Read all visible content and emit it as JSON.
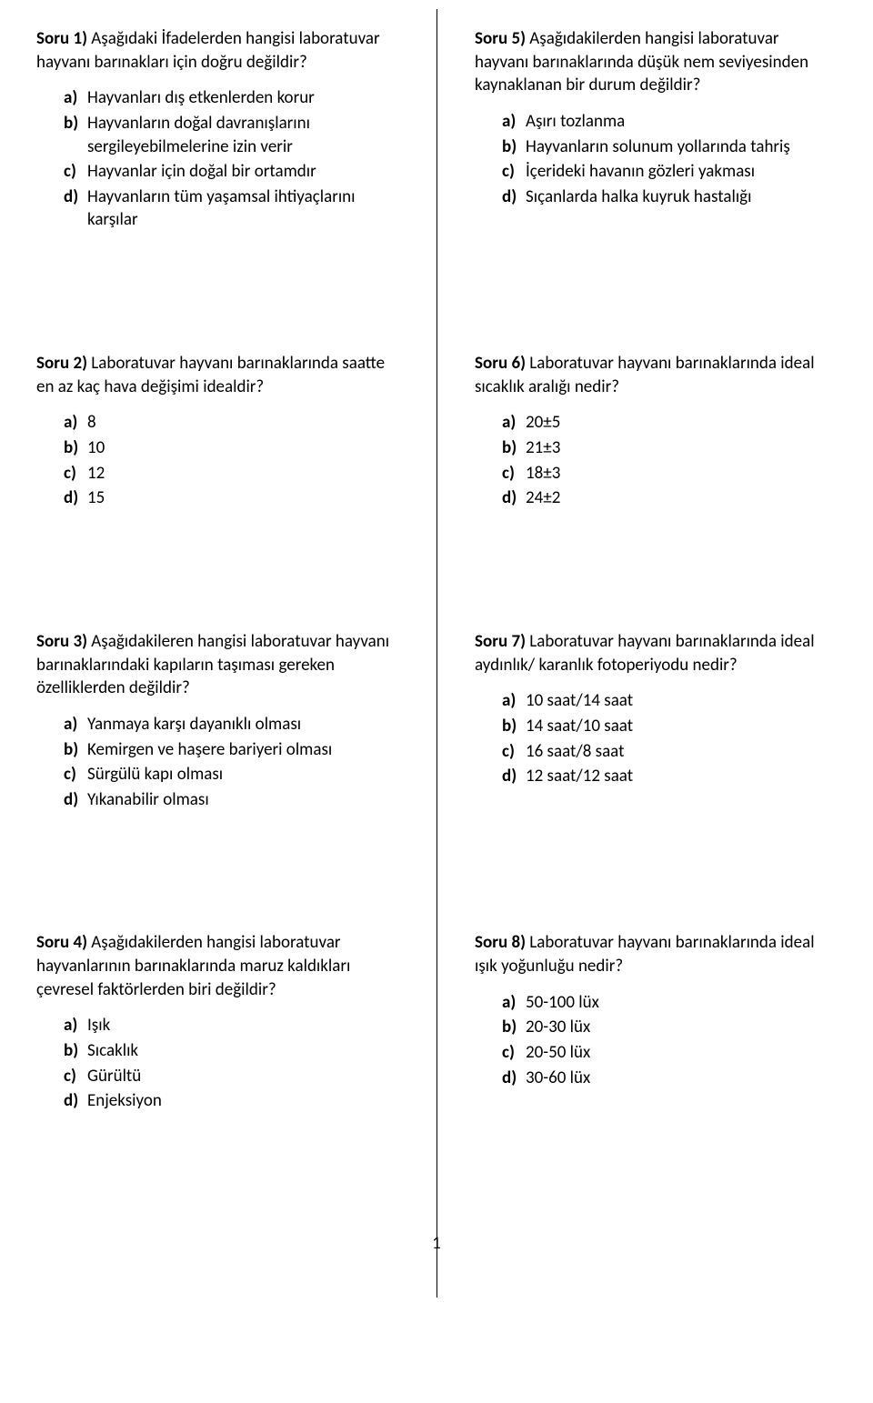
{
  "page_number": "1",
  "questions": [
    {
      "num": "Soru 1)",
      "text": "Aşağıdaki İfadelerden hangisi laboratuvar hayvanı barınakları için doğru değildir?",
      "options": [
        {
          "l": "a)",
          "t": "Hayvanları dış etkenlerden korur"
        },
        {
          "l": "b)",
          "t": "Hayvanların doğal davranışlarını sergileyebilmelerine izin verir"
        },
        {
          "l": "c)",
          "t": "Hayvanlar için doğal bir ortamdır"
        },
        {
          "l": "d)",
          "t": "Hayvanların tüm yaşamsal ihtiyaçlarını karşılar"
        }
      ]
    },
    {
      "num": "Soru 5)",
      "text": "Aşağıdakilerden hangisi laboratuvar hayvanı barınaklarında düşük nem seviyesinden kaynaklanan bir durum değildir?",
      "options": [
        {
          "l": "a)",
          "t": "Aşırı tozlanma"
        },
        {
          "l": "b)",
          "t": "Hayvanların solunum yollarında tahriş"
        },
        {
          "l": "c)",
          "t": "İçerideki havanın gözleri yakması"
        },
        {
          "l": "d)",
          "t": "Sıçanlarda halka kuyruk hastalığı"
        }
      ]
    },
    {
      "num": "Soru 2)",
      "text": "Laboratuvar hayvanı barınaklarında saatte en az kaç hava değişimi idealdir?",
      "options": [
        {
          "l": "a)",
          "t": "8"
        },
        {
          "l": "b)",
          "t": "10"
        },
        {
          "l": "c)",
          "t": "12"
        },
        {
          "l": "d)",
          "t": "15"
        }
      ]
    },
    {
      "num": "Soru 6)",
      "text": "Laboratuvar hayvanı barınaklarında ideal sıcaklık aralığı nedir?",
      "options": [
        {
          "l": "a)",
          "t": "20±5"
        },
        {
          "l": "b)",
          "t": "21±3"
        },
        {
          "l": "c)",
          "t": "18±3"
        },
        {
          "l": "d)",
          "t": "24±2"
        }
      ]
    },
    {
      "num": "Soru 3)",
      "text": "Aşağıdakileren hangisi laboratuvar hayvanı barınaklarındaki kapıların taşıması gereken özelliklerden değildir?",
      "options": [
        {
          "l": "a)",
          "t": "Yanmaya karşı dayanıklı olması"
        },
        {
          "l": "b)",
          "t": "Kemirgen ve haşere bariyeri olması"
        },
        {
          "l": "c)",
          "t": "Sürgülü kapı olması"
        },
        {
          "l": "d)",
          "t": "Yıkanabilir olması"
        }
      ]
    },
    {
      "num": "Soru 7)",
      "text": "Laboratuvar hayvanı barınaklarında ideal aydınlık/ karanlık fotoperiyodu nedir?",
      "options": [
        {
          "l": "a)",
          "t": "10 saat/14 saat"
        },
        {
          "l": "b)",
          "t": "14 saat/10 saat"
        },
        {
          "l": "c)",
          "t": "16 saat/8 saat"
        },
        {
          "l": "d)",
          "t": "12 saat/12 saat"
        }
      ]
    },
    {
      "num": "Soru 4)",
      "text": "Aşağıdakilerden hangisi laboratuvar hayvanlarının barınaklarında maruz kaldıkları çevresel faktörlerden biri değildir?",
      "options": [
        {
          "l": "a)",
          "t": "Işık"
        },
        {
          "l": "b)",
          "t": "Sıcaklık"
        },
        {
          "l": "c)",
          "t": "Gürültü"
        },
        {
          "l": "d)",
          "t": "Enjeksiyon"
        }
      ]
    },
    {
      "num": "Soru 8)",
      "text": "Laboratuvar hayvanı barınaklarında ideal ışık yoğunluğu nedir?",
      "options": [
        {
          "l": "a)",
          "t": "50-100 lüx"
        },
        {
          "l": "b)",
          "t": "20-30 lüx"
        },
        {
          "l": "c)",
          "t": "20-50 lüx"
        },
        {
          "l": "d)",
          "t": "30-60 lüx"
        }
      ]
    }
  ]
}
